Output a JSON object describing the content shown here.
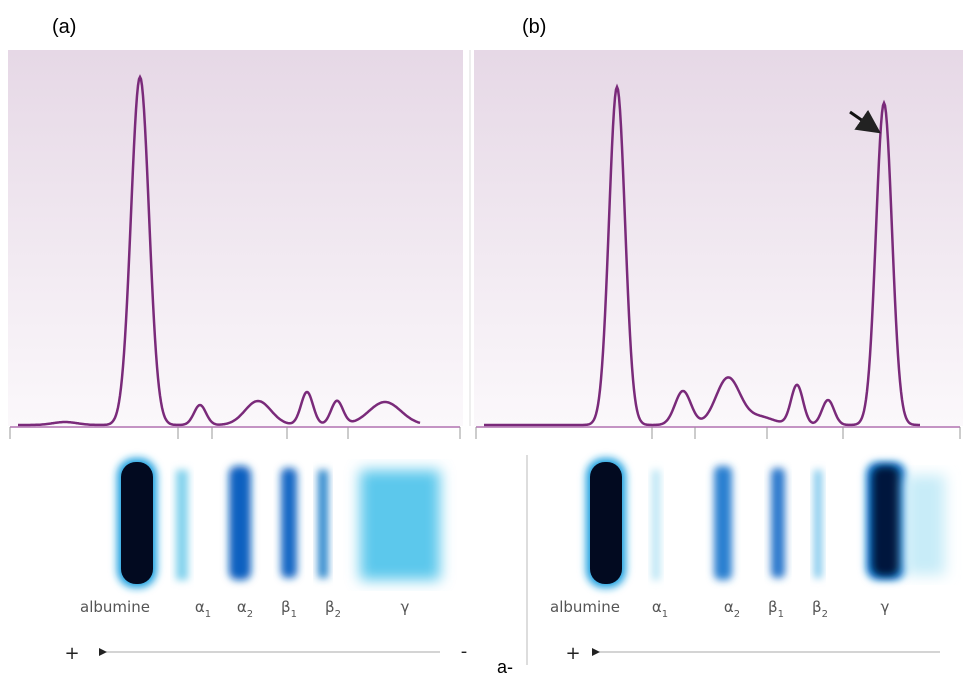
{
  "panels": [
    {
      "tag": "(a)",
      "labels": {
        "albumine": "albumine",
        "bands": [
          {
            "symbol": "α",
            "sub": "1"
          },
          {
            "symbol": "α",
            "sub": "2"
          },
          {
            "symbol": "β",
            "sub": "1"
          },
          {
            "symbol": "β",
            "sub": "2"
          },
          {
            "symbol": "γ"
          }
        ]
      },
      "plus": "+",
      "minus": "-"
    },
    {
      "tag": "(b)",
      "labels": {
        "albumine": "albumine",
        "bands": [
          {
            "symbol": "α",
            "sub": "1"
          },
          {
            "symbol": "α",
            "sub": "2"
          },
          {
            "symbol": "β",
            "sub": "1"
          },
          {
            "symbol": "β",
            "sub": "2"
          },
          {
            "symbol": "γ"
          }
        ]
      },
      "plus": "+"
    }
  ],
  "footer": "a-"
}
